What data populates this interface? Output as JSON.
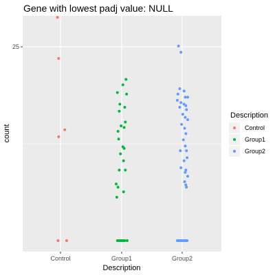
{
  "chart_data": {
    "type": "scatter",
    "title": "Gene with lowest padj value: NULL",
    "xlabel": "Description",
    "ylabel": "count",
    "categories": [
      "Control",
      "Group1",
      "Group2"
    ],
    "y_ticks": [
      25
    ],
    "y_tick_labels": [
      "25"
    ],
    "ylim": [
      0,
      29
    ],
    "grid": true,
    "legend": {
      "title": "Description",
      "position": "right",
      "entries": [
        "Control",
        "Group1",
        "Group2"
      ]
    },
    "colors": {
      "Control": "#F8766D",
      "Group1": "#00BA38",
      "Group2": "#619CFF",
      "panel": "#EBEBEB",
      "grid": "#FFFFFF"
    },
    "series": [
      {
        "name": "Control",
        "points": [
          {
            "x": -0.05,
            "y": 28.8
          },
          {
            "x": -0.03,
            "y": 23.5
          },
          {
            "x": 0.07,
            "y": 14.3
          },
          {
            "x": -0.03,
            "y": 13.4
          },
          {
            "x": -0.04,
            "y": 0
          },
          {
            "x": 0.1,
            "y": 0
          }
        ]
      },
      {
        "name": "Group1",
        "points": [
          {
            "x": 0.07,
            "y": 20.8
          },
          {
            "x": 0.02,
            "y": 20.1
          },
          {
            "x": -0.07,
            "y": 19.1
          },
          {
            "x": 0.08,
            "y": 18.9
          },
          {
            "x": -0.03,
            "y": 17.6
          },
          {
            "x": 0.05,
            "y": 17.2
          },
          {
            "x": -0.04,
            "y": 16.7
          },
          {
            "x": 0.06,
            "y": 15.3
          },
          {
            "x": -0.01,
            "y": 14.8
          },
          {
            "x": 0.04,
            "y": 14.6
          },
          {
            "x": -0.06,
            "y": 14.1
          },
          {
            "x": -0.05,
            "y": 13.1
          },
          {
            "x": 0.02,
            "y": 12.1
          },
          {
            "x": 0.04,
            "y": 11.9
          },
          {
            "x": -0.02,
            "y": 11.2
          },
          {
            "x": 0.03,
            "y": 10.3
          },
          {
            "x": -0.04,
            "y": 9.1
          },
          {
            "x": 0.06,
            "y": 9.1
          },
          {
            "x": -0.09,
            "y": 7.3
          },
          {
            "x": -0.06,
            "y": 6.9
          },
          {
            "x": 0.03,
            "y": 6.3
          },
          {
            "x": -0.08,
            "y": 5.6
          },
          {
            "x": -0.07,
            "y": 0
          },
          {
            "x": -0.05,
            "y": 0
          },
          {
            "x": -0.03,
            "y": 0
          },
          {
            "x": -0.01,
            "y": 0
          },
          {
            "x": 0.01,
            "y": 0
          },
          {
            "x": 0.03,
            "y": 0
          },
          {
            "x": 0.05,
            "y": 0
          },
          {
            "x": 0.09,
            "y": 0
          }
        ]
      },
      {
        "name": "Group2",
        "points": [
          {
            "x": -0.06,
            "y": 25.1
          },
          {
            "x": -0.02,
            "y": 24.3
          },
          {
            "x": -0.04,
            "y": 19.6
          },
          {
            "x": 0.03,
            "y": 19.3
          },
          {
            "x": -0.07,
            "y": 18.9
          },
          {
            "x": 0.05,
            "y": 18.5
          },
          {
            "x": 0.09,
            "y": 18.5
          },
          {
            "x": -0.08,
            "y": 18.1
          },
          {
            "x": -0.02,
            "y": 17.8
          },
          {
            "x": 0.03,
            "y": 17.6
          },
          {
            "x": 0.06,
            "y": 17.4
          },
          {
            "x": -0.04,
            "y": 17.2
          },
          {
            "x": 0.07,
            "y": 16.9
          },
          {
            "x": 0.01,
            "y": 16.3
          },
          {
            "x": 0.05,
            "y": 15.9
          },
          {
            "x": 0.09,
            "y": 15.6
          },
          {
            "x": -0.01,
            "y": 15.0
          },
          {
            "x": 0.04,
            "y": 14.5
          },
          {
            "x": 0.06,
            "y": 13.8
          },
          {
            "x": 0.02,
            "y": 13.0
          },
          {
            "x": 0.05,
            "y": 12.2
          },
          {
            "x": -0.03,
            "y": 11.6
          },
          {
            "x": 0.07,
            "y": 11.6
          },
          {
            "x": 0.08,
            "y": 10.7
          },
          {
            "x": 0.03,
            "y": 10.3
          },
          {
            "x": -0.02,
            "y": 9.4
          },
          {
            "x": 0.06,
            "y": 9.1
          },
          {
            "x": 0.05,
            "y": 8.8
          },
          {
            "x": 0.09,
            "y": 8.3
          },
          {
            "x": 0.04,
            "y": 7.6
          },
          {
            "x": 0.06,
            "y": 7.2
          },
          {
            "x": 0.07,
            "y": 6.9
          },
          {
            "x": -0.08,
            "y": 0
          },
          {
            "x": -0.06,
            "y": 0
          },
          {
            "x": -0.04,
            "y": 0
          },
          {
            "x": -0.02,
            "y": 0
          },
          {
            "x": 0.0,
            "y": 0
          },
          {
            "x": 0.02,
            "y": 0
          },
          {
            "x": 0.04,
            "y": 0
          },
          {
            "x": 0.06,
            "y": 0
          },
          {
            "x": 0.08,
            "y": 0
          }
        ]
      }
    ]
  }
}
